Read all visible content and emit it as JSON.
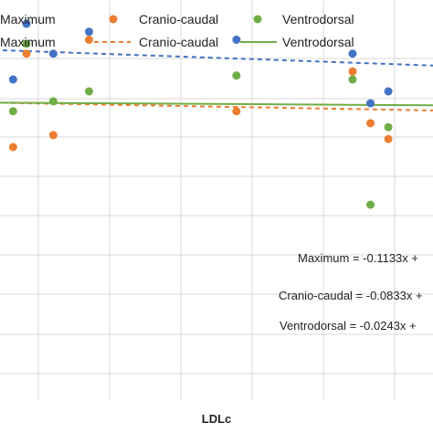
{
  "chart_data": {
    "type": "scatter",
    "title": "",
    "xlabel": "LDLc",
    "ylabel": "",
    "xlim": [
      0,
      10
    ],
    "ylim": [
      0,
      10
    ],
    "grid": true,
    "legend_placement": "top",
    "legend_rows": [
      [
        {
          "label": "Maximum",
          "kind": "marker",
          "color": "#4472C4"
        },
        {
          "label": "Cranio-caudal",
          "kind": "marker",
          "color": "#ED7D31"
        },
        {
          "label": "Ventrodorsal",
          "kind": "marker",
          "color": "#70AD47"
        }
      ],
      [
        {
          "label": "Maximum",
          "kind": "dashed-line",
          "color": "#4472C4"
        },
        {
          "label": "Cranio-caudal",
          "kind": "dashed-line",
          "color": "#ED7D31"
        },
        {
          "label": "Ventrodorsal",
          "kind": "solid-line",
          "color": "#70AD47"
        }
      ]
    ],
    "series": [
      {
        "name": "Maximum",
        "color": "#4472C4",
        "x": [
          0.6,
          0.9,
          1.5,
          2.3,
          5.6,
          8.2,
          8.6,
          9.0
        ],
        "y": [
          8.0,
          9.4,
          8.65,
          9.2,
          9.0,
          8.65,
          7.4,
          7.7
        ],
        "trendline": {
          "style": "dashed",
          "y_start": 8.75,
          "y_end": 8.35
        }
      },
      {
        "name": "Cranio-caudal",
        "color": "#ED7D31",
        "x": [
          0.6,
          0.9,
          1.5,
          2.3,
          5.6,
          8.2,
          8.6,
          9.0
        ],
        "y": [
          6.3,
          8.65,
          6.6,
          9.0,
          7.2,
          8.2,
          6.9,
          6.5
        ],
        "trendline": {
          "style": "dashed",
          "y_start": 7.42,
          "y_end": 7.22
        }
      },
      {
        "name": "Ventrodorsal",
        "color": "#70AD47",
        "x": [
          0.6,
          0.9,
          1.5,
          2.3,
          5.6,
          8.2,
          8.6,
          9.0
        ],
        "y": [
          7.2,
          8.9,
          7.45,
          7.7,
          8.1,
          8.0,
          4.85,
          6.8
        ],
        "trendline": {
          "style": "solid",
          "y_start": 7.42,
          "y_end": 7.35
        }
      }
    ],
    "annotations": [
      "Maximum = -0.1133x + ",
      "Cranio-caudal = -0.0833x + ",
      "Ventrodorsal = -0.0243x + "
    ]
  }
}
